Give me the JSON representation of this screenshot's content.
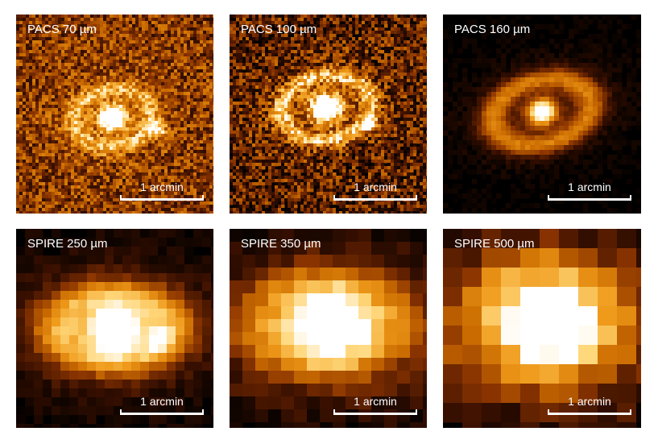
{
  "figure": {
    "colormap": [
      "#000000",
      "#3a1000",
      "#8a3400",
      "#c96a00",
      "#ef9a1a",
      "#ffd77a",
      "#ffffff"
    ],
    "panels": [
      {
        "label": "PACS 70 µm",
        "scale_label": "1 arcmin",
        "style": "noisy-ring"
      },
      {
        "label": "PACS 100 µm",
        "scale_label": "1 arcmin",
        "style": "noisy-ring"
      },
      {
        "label": "PACS 160 µm",
        "scale_label": "1 arcmin",
        "style": "smooth-ring"
      },
      {
        "label": "SPIRE 250 µm",
        "scale_label": "1 arcmin",
        "style": "pixel-blob"
      },
      {
        "label": "SPIRE 350 µm",
        "scale_label": "1 arcmin",
        "style": "pixel-blob"
      },
      {
        "label": "SPIRE 500 µm",
        "scale_label": "1 arcmin",
        "style": "pixel-blob"
      }
    ]
  }
}
